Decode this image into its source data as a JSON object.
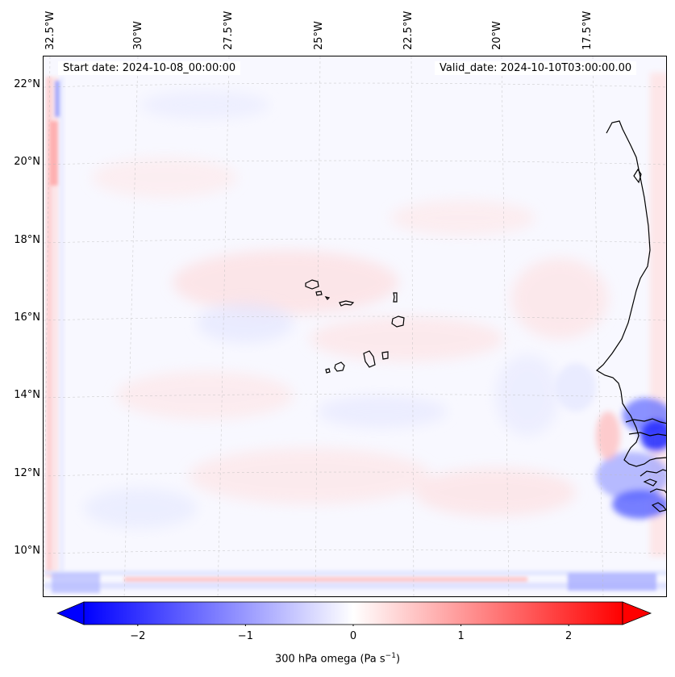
{
  "header": {
    "start_date": "Start date: 2024-10-08_00:00:00",
    "valid_date": "Valid_date: 2024-10-10T03:00:00.00"
  },
  "map": {
    "longitude_labels": [
      "32.5°W",
      "30°W",
      "27.5°W",
      "25°W",
      "22.5°W",
      "20°W",
      "17.5°W"
    ],
    "latitude_labels": [
      "22°N",
      "20°N",
      "18°N",
      "16°N",
      "14°N",
      "12°N",
      "10°N"
    ],
    "colors": {
      "negative": "#0000ff",
      "positive": "#ff0000",
      "neutral": "#ffffff",
      "coastline": "#000000",
      "gridline": "#bbbbbb"
    }
  },
  "colorbar": {
    "ticks": [
      "−2",
      "−1",
      "0",
      "1",
      "2"
    ],
    "tick_values": [
      -2,
      -1,
      0,
      1,
      2
    ],
    "range": [
      -2.5,
      2.5
    ],
    "label_text": "300 hPa omega (Pa s",
    "label_exponent": "−1",
    "label_close": ")"
  }
}
